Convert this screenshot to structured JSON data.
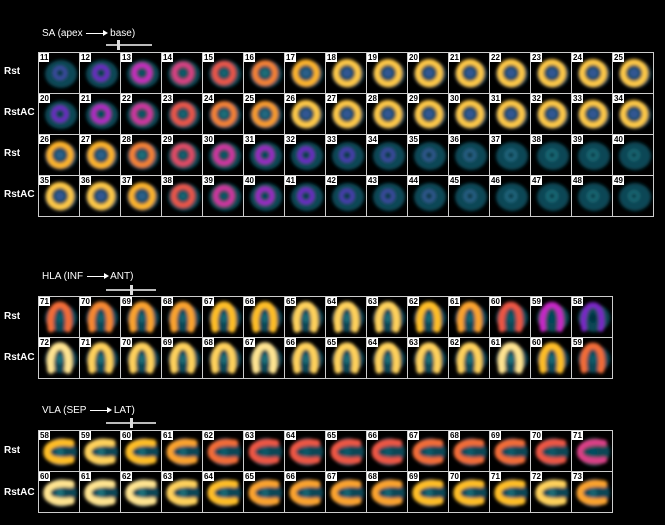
{
  "sections": [
    {
      "id": "sa",
      "title_left": "SA (apex",
      "title_right": "base)",
      "view": "sa",
      "slider_pos": 0.25,
      "rows": [
        {
          "label": "Rst",
          "nums": [
            11,
            12,
            13,
            14,
            15,
            16,
            17,
            18,
            19,
            20,
            21,
            22,
            23,
            24,
            25
          ],
          "intensity": [
            0.2,
            0.35,
            0.55,
            0.65,
            0.75,
            0.85,
            0.95,
            1,
            1,
            1,
            1,
            1,
            1,
            1,
            1
          ]
        },
        {
          "label": "RstAC",
          "nums": [
            20,
            21,
            22,
            23,
            24,
            25,
            26,
            27,
            28,
            29,
            30,
            31,
            32,
            33,
            34
          ],
          "intensity": [
            0.35,
            0.5,
            0.6,
            0.75,
            0.85,
            0.9,
            1,
            1,
            1,
            1,
            1,
            1,
            1,
            1,
            1
          ]
        },
        {
          "label": "Rst",
          "nums": [
            26,
            27,
            28,
            29,
            30,
            31,
            32,
            33,
            34,
            35,
            36,
            37,
            38,
            39,
            40
          ],
          "intensity": [
            0.95,
            0.95,
            0.85,
            0.7,
            0.6,
            0.45,
            0.35,
            0.25,
            0.2,
            0.15,
            0.12,
            0.1,
            0.08,
            0.06,
            0.05
          ]
        },
        {
          "label": "RstAC",
          "nums": [
            35,
            36,
            37,
            38,
            39,
            40,
            41,
            42,
            43,
            44,
            45,
            46,
            47,
            48,
            49
          ],
          "intensity": [
            1,
            1,
            0.95,
            0.75,
            0.6,
            0.45,
            0.35,
            0.25,
            0.2,
            0.15,
            0.12,
            0.1,
            0.08,
            0.06,
            0.05
          ]
        }
      ]
    },
    {
      "id": "hla",
      "title_left": "HLA (INF",
      "title_right": "ANT)",
      "view": "hla",
      "slider_pos": 0.5,
      "rows": [
        {
          "label": "Rst",
          "nums": [
            71,
            70,
            69,
            68,
            67,
            66,
            65,
            64,
            63,
            62,
            61,
            60,
            59,
            58
          ],
          "intensity": [
            0.75,
            0.8,
            0.85,
            0.85,
            0.9,
            0.9,
            0.95,
            0.95,
            0.95,
            0.9,
            0.85,
            0.7,
            0.5,
            0.35
          ]
        },
        {
          "label": "RstAC",
          "nums": [
            72,
            71,
            70,
            69,
            68,
            67,
            66,
            65,
            64,
            63,
            62,
            61,
            60,
            59
          ],
          "intensity": [
            1,
            0.95,
            0.95,
            0.95,
            0.95,
            1,
            0.95,
            0.95,
            0.95,
            0.95,
            0.95,
            1,
            0.9,
            0.75
          ]
        }
      ]
    },
    {
      "id": "vla",
      "title_left": "VLA (SEP",
      "title_right": "LAT)",
      "view": "vla",
      "slider_pos": 0.5,
      "rows": [
        {
          "label": "Rst",
          "nums": [
            58,
            59,
            60,
            61,
            62,
            63,
            64,
            65,
            66,
            67,
            68,
            69,
            70,
            71
          ],
          "intensity": [
            0.9,
            0.95,
            0.9,
            0.85,
            0.75,
            0.7,
            0.7,
            0.7,
            0.7,
            0.75,
            0.75,
            0.75,
            0.7,
            0.6
          ]
        },
        {
          "label": "RstAC",
          "nums": [
            60,
            61,
            62,
            63,
            64,
            65,
            66,
            67,
            68,
            69,
            70,
            71,
            72,
            73
          ],
          "intensity": [
            1,
            1,
            1,
            0.95,
            0.9,
            0.85,
            0.85,
            0.85,
            0.85,
            0.9,
            0.9,
            0.9,
            0.95,
            0.85
          ]
        }
      ]
    }
  ]
}
